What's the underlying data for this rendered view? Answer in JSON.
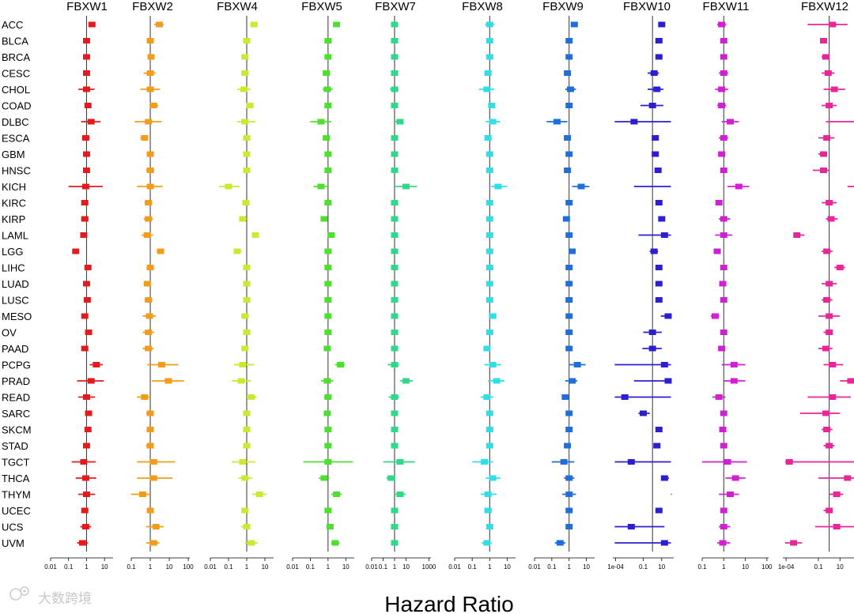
{
  "chart_data": {
    "type": "forest",
    "xlabel": "Hazard Ratio",
    "x_scale": "log",
    "reference_value": 1,
    "rows": [
      "ACC",
      "BLCA",
      "BRCA",
      "CESC",
      "CHOL",
      "COAD",
      "DLBC",
      "ESCA",
      "GBM",
      "HNSC",
      "KICH",
      "KIRC",
      "KIRP",
      "LAML",
      "LGG",
      "LIHC",
      "LUAD",
      "LUSC",
      "MESO",
      "OV",
      "PAAD",
      "PCPG",
      "PRAD",
      "READ",
      "SARC",
      "SKCM",
      "STAD",
      "TGCT",
      "THCA",
      "THYM",
      "UCEC",
      "UCS",
      "UVM"
    ],
    "panels": [
      {
        "name": "FBXW1",
        "color": "#e41a1c",
        "xlim": [
          0.01,
          30
        ],
        "tick_labels": [
          "0.01",
          "0.1",
          "1",
          "10"
        ],
        "tick_values": [
          0.01,
          0.1,
          1,
          10
        ],
        "hr": [
          2.0,
          1.0,
          1.0,
          1.0,
          1.0,
          1.2,
          1.8,
          0.9,
          1.0,
          1.0,
          0.9,
          0.8,
          0.8,
          0.7,
          0.25,
          1.2,
          1.0,
          1.1,
          0.8,
          1.3,
          0.8,
          3.5,
          1.8,
          1.0,
          1.3,
          1.2,
          1.0,
          0.7,
          0.9,
          1.0,
          0.8,
          0.9,
          0.6
        ],
        "lower": [
          1.3,
          0.85,
          0.85,
          0.75,
          0.35,
          0.8,
          0.5,
          0.55,
          0.8,
          0.8,
          0.1,
          0.6,
          0.5,
          0.45,
          0.2,
          0.9,
          0.8,
          0.8,
          0.55,
          1.0,
          0.55,
          1.5,
          0.3,
          0.35,
          0.9,
          0.9,
          0.7,
          0.15,
          0.25,
          0.35,
          0.55,
          0.45,
          0.3
        ],
        "upper": [
          3.0,
          1.2,
          1.2,
          1.35,
          2.8,
          1.8,
          6.0,
          1.5,
          1.3,
          1.3,
          8.0,
          1.1,
          1.3,
          1.1,
          0.35,
          1.6,
          1.3,
          1.5,
          1.2,
          1.7,
          1.2,
          8.0,
          9.0,
          3.0,
          1.8,
          1.6,
          1.4,
          3.2,
          3.5,
          3.0,
          1.2,
          1.8,
          1.2
        ]
      },
      {
        "name": "FBXW2",
        "color": "#f39c1a",
        "xlim": [
          0.1,
          120
        ],
        "tick_labels": [
          "0.1",
          "1",
          "10",
          "100"
        ],
        "tick_values": [
          0.1,
          1,
          10,
          100
        ],
        "hr": [
          3.0,
          1.0,
          1.1,
          1.0,
          1.0,
          1.5,
          0.8,
          0.5,
          1.0,
          1.0,
          1.0,
          0.8,
          0.8,
          0.7,
          3.5,
          1.0,
          0.7,
          0.8,
          0.9,
          0.8,
          0.8,
          4.0,
          9.0,
          0.5,
          1.0,
          1.0,
          1.0,
          1.5,
          1.5,
          0.4,
          1.0,
          2.0,
          1.5
        ],
        "lower": [
          1.6,
          0.75,
          0.8,
          0.45,
          0.3,
          0.9,
          0.15,
          0.3,
          0.7,
          0.6,
          0.2,
          0.5,
          0.45,
          0.35,
          2.2,
          0.7,
          0.5,
          0.5,
          0.4,
          0.4,
          0.4,
          0.7,
          1.2,
          0.2,
          0.6,
          0.7,
          0.6,
          0.2,
          0.2,
          0.1,
          0.7,
          0.6,
          0.6
        ],
        "upper": [
          5.0,
          1.3,
          1.4,
          1.9,
          3.3,
          2.6,
          4.0,
          0.8,
          1.3,
          1.6,
          4.5,
          1.3,
          1.4,
          1.4,
          5.0,
          1.4,
          1.0,
          1.3,
          2.0,
          1.6,
          1.5,
          30.0,
          60.0,
          1.0,
          1.5,
          1.4,
          1.5,
          20.0,
          15.0,
          1.0,
          1.4,
          5.0,
          3.0
        ]
      },
      {
        "name": "FBXW4",
        "color": "#cde82e",
        "xlim": [
          0.01,
          30
        ],
        "tick_labels": [
          "0.01",
          "0.1",
          "1",
          "10"
        ],
        "tick_values": [
          0.01,
          0.1,
          1,
          10
        ],
        "hr": [
          2.5,
          1.0,
          0.8,
          0.8,
          0.7,
          1.5,
          0.8,
          1.0,
          1.0,
          1.0,
          0.1,
          0.9,
          0.6,
          3.0,
          0.3,
          1.0,
          1.0,
          1.0,
          0.8,
          1.0,
          0.8,
          0.6,
          0.5,
          1.8,
          1.0,
          1.0,
          1.0,
          0.6,
          0.8,
          5.0,
          0.8,
          1.0,
          1.8
        ],
        "lower": [
          1.6,
          0.8,
          0.6,
          0.5,
          0.3,
          1.1,
          0.3,
          0.7,
          0.75,
          0.75,
          0.03,
          0.65,
          0.4,
          2.0,
          0.2,
          0.8,
          0.8,
          0.8,
          0.5,
          0.7,
          0.5,
          0.2,
          0.15,
          1.0,
          0.7,
          0.75,
          0.7,
          0.15,
          0.35,
          2.0,
          0.55,
          0.5,
          0.8
        ],
        "upper": [
          4.0,
          1.3,
          1.1,
          1.3,
          1.6,
          2.0,
          3.0,
          1.5,
          1.3,
          1.4,
          0.4,
          1.3,
          1.0,
          4.5,
          0.5,
          1.3,
          1.3,
          1.3,
          1.3,
          1.5,
          1.2,
          2.5,
          1.7,
          3.5,
          1.4,
          1.4,
          1.4,
          3.0,
          2.0,
          12.0,
          1.1,
          1.5,
          4.0
        ],
        "notes": "THYM interval extends beyond axis"
      },
      {
        "name": "FBXW5",
        "color": "#4ee02f",
        "xlim": [
          0.01,
          30
        ],
        "tick_labels": [
          "0.01",
          "0.1",
          "1",
          "10"
        ],
        "tick_values": [
          0.01,
          0.1,
          1,
          10
        ],
        "hr": [
          3.0,
          1.0,
          1.0,
          0.8,
          0.9,
          1.0,
          0.4,
          0.8,
          1.0,
          1.0,
          0.4,
          1.0,
          0.6,
          1.5,
          1.0,
          1.0,
          1.0,
          1.0,
          1.0,
          1.0,
          0.9,
          5.0,
          0.9,
          1.0,
          0.9,
          1.0,
          1.0,
          1.0,
          0.6,
          3.0,
          1.0,
          1.3,
          2.5
        ],
        "lower": [
          2.0,
          0.8,
          0.8,
          0.5,
          0.5,
          0.75,
          0.1,
          0.55,
          0.8,
          0.8,
          0.15,
          0.8,
          0.4,
          1.1,
          0.75,
          0.8,
          0.8,
          0.8,
          0.7,
          0.75,
          0.6,
          2.5,
          0.4,
          0.6,
          0.65,
          0.75,
          0.75,
          0.04,
          0.3,
          1.5,
          0.75,
          0.8,
          1.5
        ],
        "upper": [
          4.5,
          1.3,
          1.3,
          1.2,
          1.8,
          1.3,
          1.5,
          1.2,
          1.3,
          1.3,
          1.0,
          1.3,
          0.9,
          2.0,
          1.3,
          1.3,
          1.3,
          1.3,
          1.4,
          1.4,
          1.3,
          9.0,
          2.0,
          1.6,
          1.3,
          1.3,
          1.3,
          25.0,
          1.2,
          6.0,
          1.3,
          2.0,
          4.5
        ]
      },
      {
        "name": "FBXW7",
        "color": "#2fd98a",
        "xlim": [
          0.01,
          1500
        ],
        "tick_labels": [
          "0.01",
          "0.1",
          "1",
          "10",
          "1000"
        ],
        "tick_values": [
          0.01,
          0.1,
          1,
          10,
          1000
        ],
        "hr": [
          1.0,
          1.0,
          1.0,
          1.0,
          1.0,
          1.0,
          3.0,
          1.0,
          1.0,
          1.0,
          10.0,
          1.0,
          1.0,
          1.0,
          1.0,
          1.0,
          1.0,
          1.0,
          1.0,
          1.0,
          1.0,
          1.0,
          10.0,
          1.0,
          1.0,
          1.0,
          1.0,
          3.0,
          0.5,
          3.0,
          1.0,
          1.0,
          1.0
        ],
        "lower": [
          0.6,
          0.75,
          0.75,
          0.6,
          0.4,
          0.6,
          1.0,
          0.6,
          0.75,
          0.75,
          1.0,
          0.75,
          0.65,
          0.65,
          0.75,
          0.75,
          0.75,
          0.75,
          0.65,
          0.75,
          0.65,
          0.25,
          3.0,
          0.3,
          0.65,
          0.75,
          0.65,
          0.1,
          0.2,
          1.0,
          0.65,
          0.6,
          0.5
        ],
        "upper": [
          1.6,
          1.3,
          1.3,
          1.6,
          2.3,
          1.6,
          6.0,
          1.6,
          1.3,
          1.3,
          90.0,
          1.3,
          1.5,
          1.5,
          1.3,
          1.3,
          1.3,
          1.3,
          1.5,
          1.3,
          1.5,
          2.5,
          40.0,
          2.5,
          1.5,
          1.3,
          1.5,
          60.0,
          1.2,
          9.0,
          1.5,
          1.6,
          2.0
        ]
      },
      {
        "name": "FBXW8",
        "color": "#2fdfe6",
        "xlim": [
          0.01,
          30
        ],
        "tick_labels": [
          "0.01",
          "0.1",
          "1",
          "10"
        ],
        "tick_values": [
          0.01,
          0.1,
          1,
          10
        ],
        "hr": [
          1.0,
          1.0,
          1.0,
          0.8,
          0.7,
          1.3,
          1.5,
          0.8,
          1.0,
          1.0,
          3.0,
          1.0,
          1.0,
          1.0,
          1.0,
          1.0,
          1.0,
          1.0,
          1.5,
          1.0,
          0.7,
          1.5,
          2.5,
          0.7,
          1.0,
          1.0,
          1.0,
          0.5,
          1.5,
          0.8,
          0.8,
          1.0,
          0.7
        ],
        "lower": [
          0.55,
          0.8,
          0.8,
          0.5,
          0.25,
          0.9,
          0.6,
          0.55,
          0.75,
          0.75,
          1.2,
          0.75,
          0.75,
          0.7,
          0.75,
          0.75,
          0.75,
          0.75,
          0.9,
          0.75,
          0.45,
          0.5,
          0.8,
          0.3,
          0.7,
          0.7,
          0.7,
          0.1,
          0.6,
          0.3,
          0.5,
          0.65,
          0.35
        ],
        "upper": [
          1.8,
          1.3,
          1.3,
          1.2,
          1.8,
          1.8,
          4.0,
          1.2,
          1.3,
          1.3,
          10.0,
          1.3,
          1.3,
          1.4,
          1.3,
          1.3,
          1.3,
          1.3,
          2.3,
          1.3,
          1.0,
          4.5,
          7.0,
          1.6,
          1.4,
          1.4,
          1.4,
          1.5,
          4.0,
          2.5,
          1.3,
          1.5,
          1.3
        ]
      },
      {
        "name": "FBXW9",
        "color": "#1e6fd9",
        "xlim": [
          0.01,
          30
        ],
        "tick_labels": [
          "0.01",
          "0.1",
          "1",
          "10"
        ],
        "tick_values": [
          0.01,
          0.1,
          1,
          10
        ],
        "hr": [
          2.0,
          1.0,
          1.0,
          0.8,
          1.2,
          1.0,
          0.2,
          0.8,
          1.0,
          0.8,
          5.0,
          1.0,
          0.7,
          1.0,
          1.5,
          1.0,
          1.0,
          1.0,
          1.0,
          1.0,
          1.0,
          3.0,
          1.5,
          0.6,
          1.0,
          1.0,
          0.8,
          0.5,
          1.0,
          1.0,
          1.0,
          1.0,
          0.3
        ],
        "lower": [
          1.3,
          0.8,
          0.8,
          0.55,
          0.6,
          0.8,
          0.05,
          0.55,
          0.8,
          0.65,
          1.5,
          0.8,
          0.5,
          0.8,
          1.1,
          0.8,
          0.8,
          0.8,
          0.8,
          0.8,
          0.8,
          1.0,
          0.6,
          0.4,
          0.8,
          0.8,
          0.6,
          0.1,
          0.5,
          0.4,
          0.8,
          0.8,
          0.15
        ],
        "upper": [
          3.0,
          1.3,
          1.3,
          1.2,
          2.5,
          1.3,
          0.8,
          1.2,
          1.3,
          1.0,
          15.0,
          1.3,
          1.0,
          1.3,
          2.0,
          1.3,
          1.3,
          1.3,
          1.3,
          1.3,
          1.3,
          9.0,
          3.0,
          1.0,
          1.3,
          1.3,
          1.1,
          2.0,
          2.0,
          2.5,
          1.3,
          1.3,
          0.6
        ]
      },
      {
        "name": "FBXW10",
        "color": "#2d1fd0",
        "xlim": [
          5e-05,
          200
        ],
        "tick_labels": [
          "1e-04",
          "0.1",
          "10"
        ],
        "tick_values": [
          0.0001,
          0.1,
          10
        ],
        "hr": [
          10.0,
          5.0,
          5.0,
          1.5,
          3.0,
          1.0,
          0.01,
          2.0,
          2.0,
          4.0,
          null,
          5.0,
          10.0,
          20.0,
          1.5,
          5.0,
          5.0,
          5.0,
          50.0,
          1.0,
          1.0,
          20.0,
          50.0,
          0.001,
          0.1,
          5.0,
          3.0,
          0.005,
          20.0,
          null,
          5.0,
          0.005,
          20.0
        ],
        "lower": [
          5.0,
          3.0,
          3.0,
          0.3,
          0.3,
          0.05,
          8e-05,
          1.0,
          1.0,
          2.0,
          0.01,
          3.5,
          5.0,
          0.03,
          0.5,
          3.5,
          3.5,
          3.5,
          8.0,
          0.1,
          0.08,
          8e-05,
          0.01,
          8e-05,
          0.03,
          3.0,
          1.5,
          8e-05,
          10.0,
          100.0,
          3.5,
          8e-05,
          8e-05
        ],
        "upper": [
          20.0,
          8.0,
          8.0,
          5.0,
          15.0,
          15.0,
          100.0,
          4.0,
          4.0,
          8.0,
          100.0,
          8.0,
          20.0,
          100.0,
          4.0,
          8.0,
          8.0,
          8.0,
          80.0,
          10.0,
          10.0,
          100.0,
          100.0,
          100.0,
          0.5,
          8.0,
          6.0,
          100.0,
          60.0,
          120.0,
          8.0,
          20.0,
          100.0
        ],
        "notes": "KICH shown as interval only; THYM marker beyond axis"
      },
      {
        "name": "FBXW11",
        "color": "#d21fd6",
        "xlim": [
          0.1,
          120
        ],
        "tick_labels": [
          "0.1",
          "1",
          "10",
          "100"
        ],
        "tick_values": [
          0.1,
          1,
          10,
          100
        ],
        "hr": [
          0.8,
          1.0,
          1.0,
          1.0,
          0.8,
          0.8,
          2.0,
          1.0,
          0.8,
          1.0,
          5.0,
          0.6,
          1.0,
          1.0,
          0.5,
          1.0,
          0.9,
          1.0,
          0.4,
          1.0,
          0.8,
          3.0,
          3.0,
          0.6,
          1.0,
          0.9,
          1.0,
          1.5,
          3.5,
          2.0,
          1.0,
          1.0,
          0.9
        ],
        "lower": [
          0.5,
          0.8,
          0.8,
          0.6,
          0.4,
          0.5,
          0.8,
          0.6,
          0.6,
          0.75,
          1.5,
          0.45,
          0.6,
          0.4,
          0.35,
          0.8,
          0.7,
          0.7,
          0.25,
          0.75,
          0.6,
          0.8,
          1.0,
          0.3,
          0.75,
          0.7,
          0.7,
          0.1,
          1.2,
          0.6,
          0.7,
          0.6,
          0.5
        ],
        "upper": [
          1.3,
          1.3,
          1.3,
          1.6,
          1.6,
          1.3,
          5.0,
          1.6,
          1.1,
          1.3,
          15.0,
          0.8,
          2.0,
          2.5,
          0.7,
          1.3,
          1.1,
          1.4,
          0.6,
          1.3,
          1.1,
          10.0,
          10.0,
          1.2,
          1.3,
          1.1,
          1.4,
          12.0,
          10.0,
          5.0,
          1.4,
          2.0,
          2.0
        ]
      },
      {
        "name": "FBXW12",
        "color": "#e8269a",
        "xlim": [
          5e-05,
          200
        ],
        "tick_labels": [
          "1e-04",
          "0.1",
          "10"
        ],
        "tick_values": [
          0.0001,
          0.1,
          10
        ],
        "hr": [
          2.0,
          0.3,
          0.5,
          0.8,
          3.0,
          1.0,
          null,
          0.6,
          0.3,
          0.3,
          null,
          1.0,
          1.5,
          0.001,
          0.6,
          10.0,
          1.0,
          0.6,
          1.0,
          1.0,
          0.5,
          2.0,
          100.0,
          2.0,
          0.5,
          0.6,
          1.0,
          0.0002,
          50.0,
          5.0,
          1.0,
          5.0,
          0.0005
        ],
        "lower": [
          0.01,
          0.2,
          0.2,
          0.2,
          0.3,
          0.2,
          0.5,
          0.1,
          0.1,
          0.03,
          50.0,
          0.2,
          0.5,
          0.0005,
          0.2,
          3.0,
          0.2,
          0.2,
          0.1,
          0.3,
          0.1,
          0.3,
          10.0,
          0.01,
          0.002,
          0.2,
          0.3,
          8e-05,
          0.1,
          1.0,
          0.3,
          0.05,
          8e-05
        ],
        "upper": [
          50.0,
          0.5,
          1.0,
          3.0,
          30.0,
          5.0,
          200.0,
          3.0,
          0.6,
          1.0,
          200.0,
          5.0,
          6.0,
          0.005,
          2.0,
          30.0,
          5.0,
          2.0,
          10.0,
          2.0,
          2.0,
          20.0,
          200.0,
          100.0,
          10.0,
          2.0,
          3.0,
          200.0,
          200.0,
          20.0,
          2.0,
          200.0,
          0.003
        ],
        "notes": "DLBC and KICH shown as intervals only"
      }
    ]
  },
  "watermark": {
    "text": "大数跨境"
  }
}
